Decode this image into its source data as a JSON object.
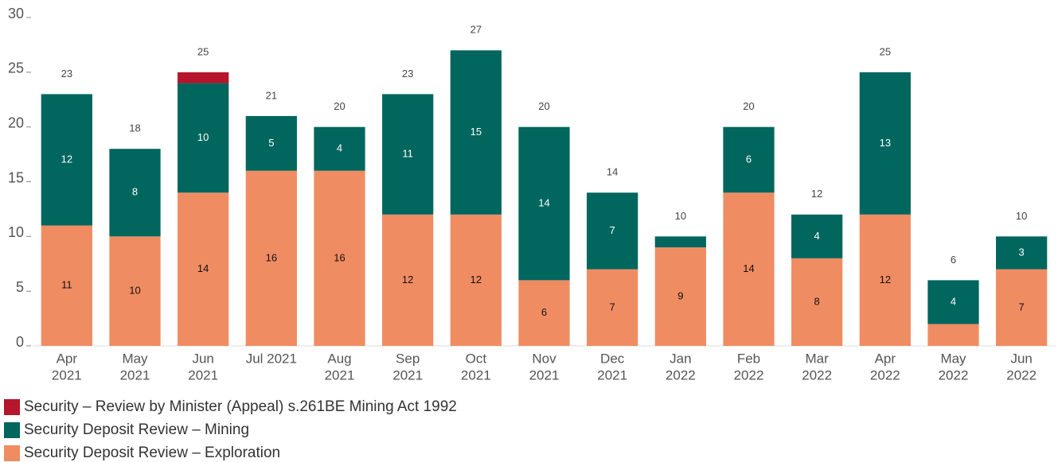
{
  "chart_data": {
    "type": "stacked_bar",
    "categories": [
      [
        "Apr",
        "2021"
      ],
      [
        "May",
        "2021"
      ],
      [
        "Jun",
        "2021"
      ],
      [
        "Jul 2021"
      ],
      [
        "Aug",
        "2021"
      ],
      [
        "Sep",
        "2021"
      ],
      [
        "Oct",
        "2021"
      ],
      [
        "Nov",
        "2021"
      ],
      [
        "Dec",
        "2021"
      ],
      [
        "Jan",
        "2022"
      ],
      [
        "Feb",
        "2022"
      ],
      [
        "Mar",
        "2022"
      ],
      [
        "Apr",
        "2022"
      ],
      [
        "May",
        "2022"
      ],
      [
        "Jun",
        "2022"
      ]
    ],
    "series": [
      {
        "name": "Security Deposit Review – Exploration",
        "color": "#f08c62",
        "label_color": "#111",
        "values": [
          11,
          10,
          14,
          16,
          16,
          12,
          12,
          6,
          7,
          9,
          14,
          8,
          12,
          2,
          7
        ],
        "value_labels": [
          11,
          10,
          14,
          16,
          16,
          12,
          12,
          6,
          7,
          9,
          14,
          8,
          12,
          null,
          7
        ]
      },
      {
        "name": "Security Deposit Review – Mining",
        "color": "#00665e",
        "label_color": "#fff",
        "values": [
          12,
          8,
          10,
          5,
          4,
          11,
          15,
          14,
          7,
          1,
          6,
          4,
          13,
          4,
          3
        ],
        "value_labels": [
          12,
          8,
          10,
          5,
          4,
          11,
          15,
          14,
          7,
          null,
          6,
          4,
          13,
          4,
          3
        ]
      },
      {
        "name": "Security – Review by Minister (Appeal) s.261BE Mining Act 1992",
        "color": "#b5162b",
        "values": [
          0,
          0,
          1,
          0,
          0,
          0,
          0,
          0,
          0,
          0,
          0,
          0,
          0,
          0,
          0
        ]
      }
    ],
    "totals": [
      23,
      18,
      25,
      21,
      20,
      23,
      27,
      20,
      14,
      10,
      20,
      12,
      25,
      6,
      10
    ],
    "ylim": [
      0,
      30
    ],
    "yticks": [
      0,
      5,
      10,
      15,
      20,
      25,
      30
    ]
  }
}
